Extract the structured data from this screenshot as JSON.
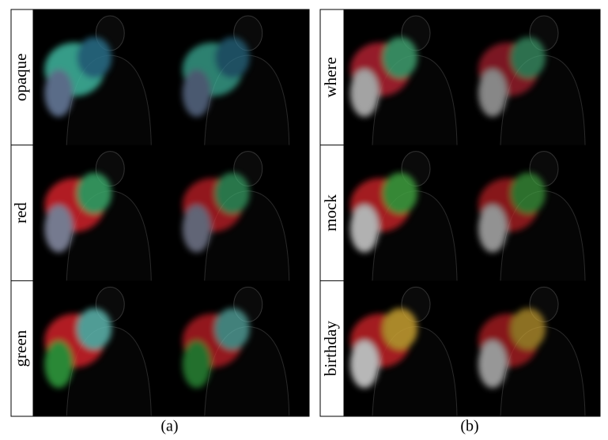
{
  "panels": [
    {
      "caption": "(a)",
      "rows": [
        "opaque",
        "red",
        "green"
      ]
    },
    {
      "caption": "(b)",
      "rows": [
        "where",
        "mock",
        "birthday"
      ]
    }
  ]
}
